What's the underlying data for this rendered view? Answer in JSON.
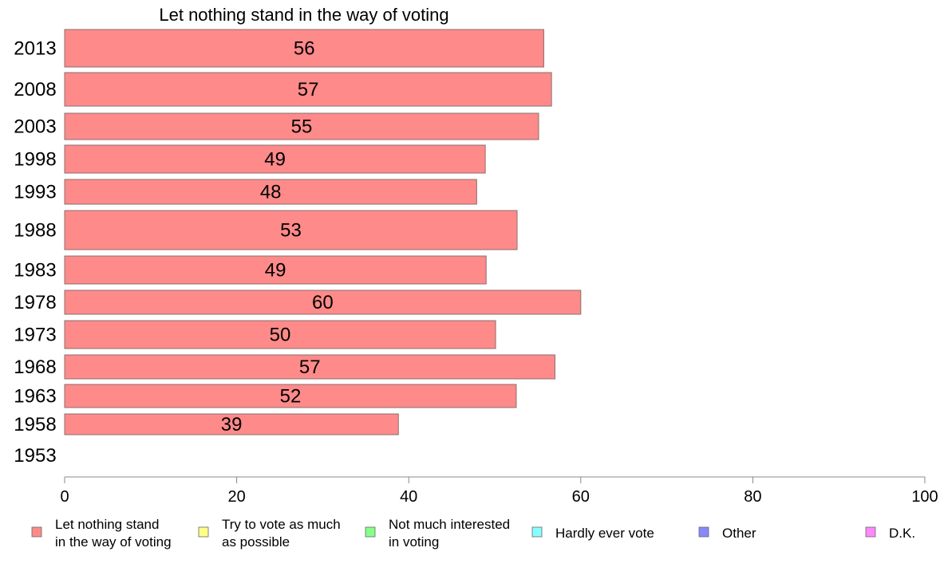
{
  "chart_data": {
    "type": "bar",
    "orientation": "horizontal",
    "title": "Let nothing stand in the way of voting",
    "xlabel": "",
    "ylabel": "",
    "xlim": [
      0,
      100
    ],
    "x_ticks": [
      "0",
      "20",
      "40",
      "60",
      "80",
      "100"
    ],
    "categories": [
      "2013",
      "2008",
      "2003",
      "1998",
      "1993",
      "1988",
      "1983",
      "1978",
      "1973",
      "1968",
      "1963",
      "1958",
      "1953"
    ],
    "series": [
      {
        "name": "Let nothing stand in the way of voting",
        "color": "#ff8a8a",
        "values": [
          55.7,
          56.6,
          55.1,
          48.9,
          47.9,
          52.6,
          49.0,
          60.0,
          50.1,
          57.0,
          52.5,
          38.8,
          null
        ],
        "labels": [
          "56",
          "57",
          "55",
          "49",
          "48",
          "53",
          "49",
          "60",
          "50",
          "57",
          "52",
          "39",
          ""
        ]
      }
    ],
    "legend": {
      "placement": "bottom",
      "items": [
        {
          "lines": [
            "Let nothing stand",
            "in the way of voting"
          ],
          "color": "#ff8a8a"
        },
        {
          "lines": [
            "Try to vote as much",
            "as possible"
          ],
          "color": "#ffff88"
        },
        {
          "lines": [
            "Not much interested",
            "in voting"
          ],
          "color": "#88ff88"
        },
        {
          "lines": [
            "Hardly ever vote"
          ],
          "color": "#88ffff"
        },
        {
          "lines": [
            "Other"
          ],
          "color": "#8888ff"
        },
        {
          "lines": [
            "D.K."
          ],
          "color": "#ff88ff"
        }
      ]
    },
    "grid": false
  }
}
